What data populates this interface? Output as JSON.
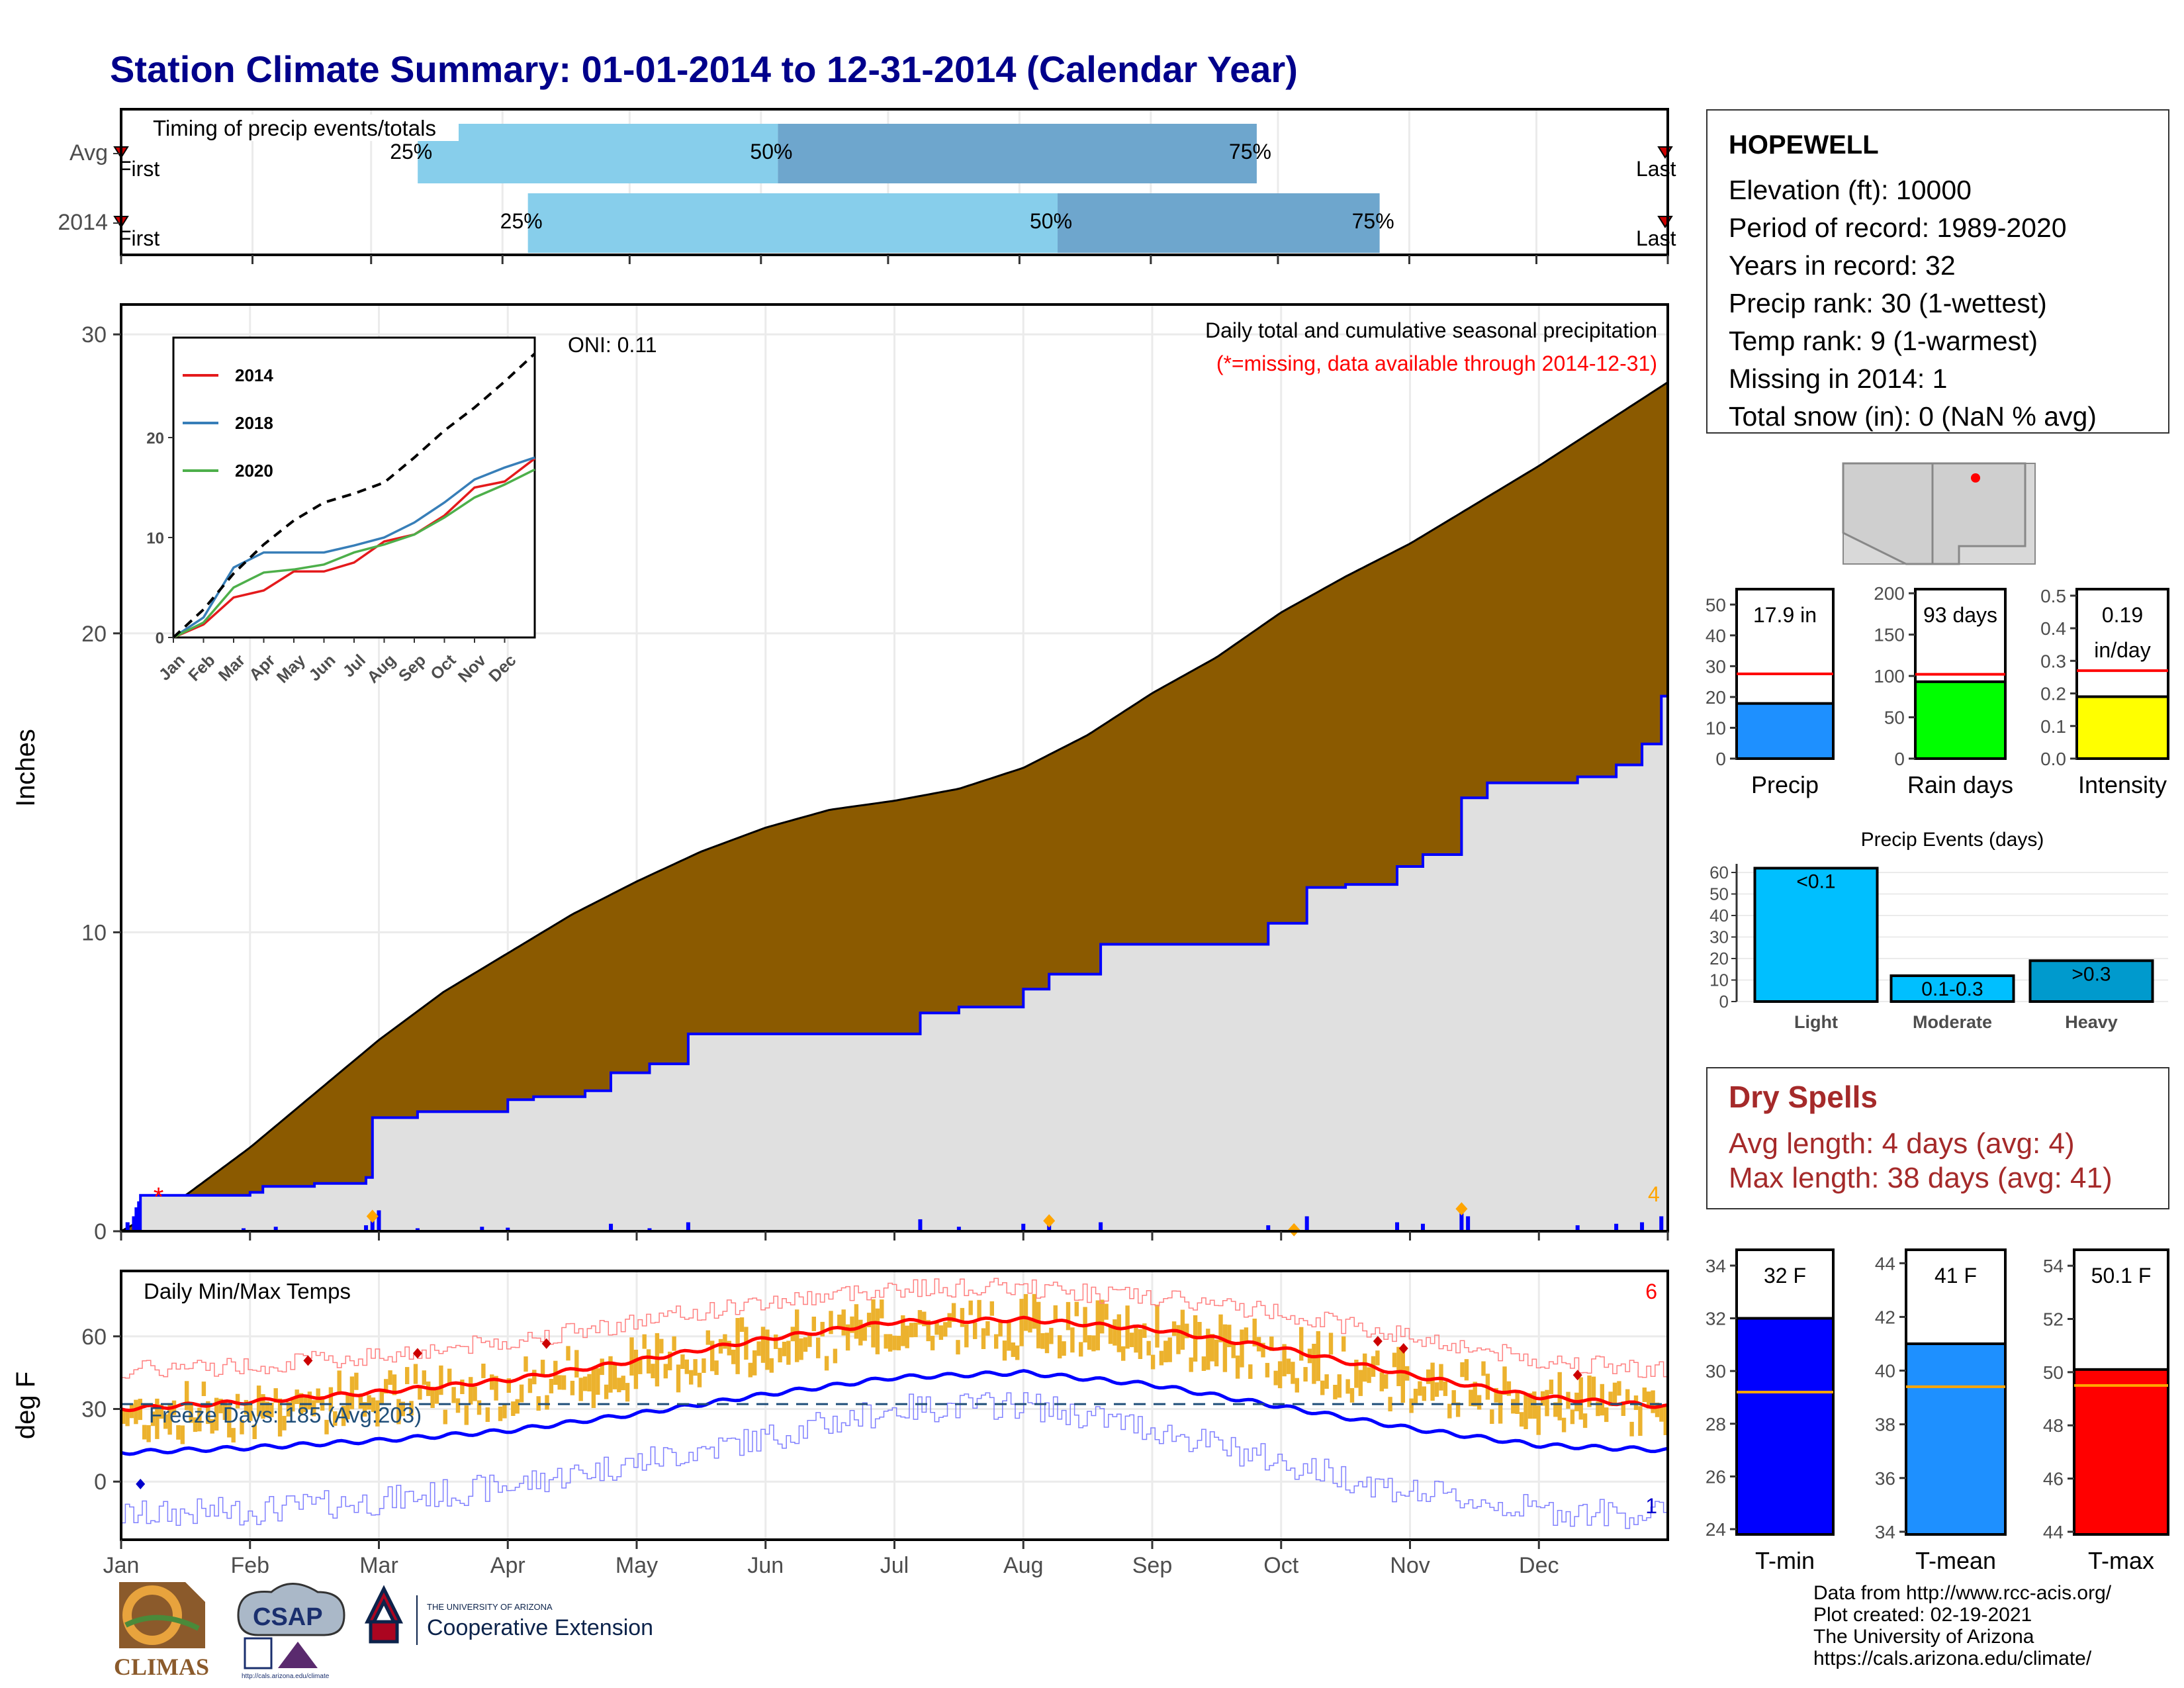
{
  "title": "Station Climate Summary: 01-01-2014 to 12-31-2014 (Calendar Year)",
  "station": {
    "name": "HOPEWELL",
    "lines": [
      "Elevation (ft): 10000",
      "Period of record: 1989-2020",
      "Years in record: 32",
      "Precip rank: 30 (1-wettest)",
      "Temp rank: 9 (1-warmest)",
      "Missing in 2014: 1",
      "Total snow (in): 0 (NaN % avg)"
    ]
  },
  "dry_spells": {
    "heading": "Dry Spells",
    "avg": "Avg length: 4 days (avg: 4)",
    "max": "Max length: 38 days (avg: 41)"
  },
  "credits": [
    "Data from http://www.rcc-acis.org/",
    "Plot created: 02-19-2021",
    "The University of Arizona",
    "https://cals.arizona.edu/climate/"
  ],
  "logos": {
    "climas": "CLIMAS",
    "csap": "CSAP",
    "csap_url": "http://cals.arizona.edu/climate",
    "ua_small": "THE UNIVERSITY OF ARIZONA",
    "ua_big": "Cooperative Extension"
  },
  "colors": {
    "title": "#00008b",
    "cumulative_avg_fill": "#8b5a00",
    "cumulative_2014_fill": "#e0e0e0",
    "cumulative_line": "#0000ff",
    "light_blue": "#87ceeb",
    "steel_blue": "#6ea6cd",
    "tmax": "#ff0000",
    "tmin": "#0000ff",
    "temp_bar": "#ecb22e",
    "dry_spell": "#a52a2a"
  },
  "chart_data": [
    {
      "id": "timing",
      "type": "bar",
      "title": "Timing of precip events/totals",
      "categories": [
        "Avg",
        "2014"
      ],
      "first_label": "First",
      "last_label": "Last",
      "quantiles": [
        {
          "row": "Avg",
          "q25": "Mar 12",
          "q50": "Jun 5",
          "q75": "Sep 26",
          "labels": [
            "25%",
            "50%",
            "75%"
          ]
        },
        {
          "row": "2014",
          "q25": "Apr 7",
          "q50": "Aug 10",
          "q75": "Oct 25",
          "labels": [
            "25%",
            "50%",
            "75%"
          ]
        }
      ]
    },
    {
      "id": "precip",
      "type": "area",
      "ylabel": "Inches",
      "ylim": [
        0,
        31
      ],
      "yticks": [
        0,
        10,
        20,
        30
      ],
      "annotation_top": "Daily total and cumulative seasonal precipitation",
      "annotation_missing": "(*=missing, data available through 2014-12-31)",
      "oni": "ONI: 0.11",
      "corner_count": "4",
      "series": [
        {
          "name": "Average cumulative",
          "points": [
            [
              0,
              0
            ],
            [
              0.5,
              1.2
            ],
            [
              1,
              2.8
            ],
            [
              1.5,
              4.6
            ],
            [
              2,
              6.4
            ],
            [
              2.5,
              8.0
            ],
            [
              3,
              9.3
            ],
            [
              3.5,
              10.6
            ],
            [
              4,
              11.7
            ],
            [
              4.5,
              12.7
            ],
            [
              5,
              13.5
            ],
            [
              5.5,
              14.1
            ],
            [
              6,
              14.4
            ],
            [
              6.5,
              14.8
            ],
            [
              7,
              15.5
            ],
            [
              7.5,
              16.6
            ],
            [
              8,
              18.0
            ],
            [
              8.5,
              19.2
            ],
            [
              9,
              20.7
            ],
            [
              9.5,
              21.9
            ],
            [
              10,
              23.0
            ],
            [
              10.5,
              24.3
            ],
            [
              11,
              25.6
            ],
            [
              11.5,
              27.0
            ],
            [
              12,
              28.4
            ]
          ]
        },
        {
          "name": "2014 cumulative",
          "points": [
            [
              0,
              0
            ],
            [
              0.15,
              1.2
            ],
            [
              0.9,
              1.2
            ],
            [
              1.0,
              1.3
            ],
            [
              1.1,
              1.5
            ],
            [
              1.5,
              1.6
            ],
            [
              1.9,
              1.8
            ],
            [
              1.95,
              3.8
            ],
            [
              2.3,
              4.0
            ],
            [
              2.8,
              4.0
            ],
            [
              3.0,
              4.4
            ],
            [
              3.2,
              4.5
            ],
            [
              3.6,
              4.7
            ],
            [
              3.8,
              5.3
            ],
            [
              4.1,
              5.6
            ],
            [
              4.4,
              6.6
            ],
            [
              5.0,
              6.6
            ],
            [
              6.0,
              6.6
            ],
            [
              6.2,
              7.3
            ],
            [
              6.5,
              7.5
            ],
            [
              7.0,
              8.1
            ],
            [
              7.2,
              8.6
            ],
            [
              7.6,
              9.6
            ],
            [
              8.0,
              9.6
            ],
            [
              8.6,
              9.6
            ],
            [
              8.9,
              10.3
            ],
            [
              9.2,
              11.5
            ],
            [
              9.5,
              11.6
            ],
            [
              9.9,
              12.2
            ],
            [
              10.1,
              12.6
            ],
            [
              10.4,
              14.5
            ],
            [
              10.6,
              15.0
            ],
            [
              11.0,
              15.0
            ],
            [
              11.3,
              15.2
            ],
            [
              11.6,
              15.6
            ],
            [
              11.8,
              16.3
            ],
            [
              11.95,
              17.9
            ],
            [
              12,
              17.9
            ]
          ]
        }
      ],
      "daily_precip_spikes": [
        [
          0.05,
          0.3
        ],
        [
          0.1,
          0.5
        ],
        [
          0.12,
          0.8
        ],
        [
          0.14,
          1.0
        ],
        [
          0.95,
          0.1
        ],
        [
          1.2,
          0.15
        ],
        [
          1.9,
          0.2
        ],
        [
          1.95,
          0.35
        ],
        [
          2.0,
          0.7
        ],
        [
          2.3,
          0.1
        ],
        [
          2.8,
          0.15
        ],
        [
          3.0,
          0.12
        ],
        [
          3.8,
          0.25
        ],
        [
          4.1,
          0.1
        ],
        [
          4.4,
          0.3
        ],
        [
          6.2,
          0.4
        ],
        [
          6.5,
          0.15
        ],
        [
          7.0,
          0.25
        ],
        [
          7.2,
          0.2
        ],
        [
          7.6,
          0.3
        ],
        [
          8.9,
          0.2
        ],
        [
          9.2,
          0.5
        ],
        [
          9.9,
          0.3
        ],
        [
          10.1,
          0.25
        ],
        [
          10.4,
          0.65
        ],
        [
          10.45,
          0.5
        ],
        [
          11.3,
          0.2
        ],
        [
          11.6,
          0.25
        ],
        [
          11.8,
          0.3
        ],
        [
          11.95,
          0.5
        ]
      ]
    },
    {
      "id": "cumulative_inset",
      "type": "line",
      "categories": [
        "Jan",
        "Feb",
        "Mar",
        "Apr",
        "May",
        "Jun",
        "Jul",
        "Aug",
        "Sep",
        "Oct",
        "Nov",
        "Dec"
      ],
      "ylim": [
        0,
        30
      ],
      "yticks": [
        0,
        10,
        20
      ],
      "series": [
        {
          "name": "2014",
          "points": [
            [
              0,
              0
            ],
            [
              1,
              1.3
            ],
            [
              2,
              4.0
            ],
            [
              3,
              4.7
            ],
            [
              4,
              6.6
            ],
            [
              5,
              6.6
            ],
            [
              6,
              7.5
            ],
            [
              7,
              9.6
            ],
            [
              8,
              10.3
            ],
            [
              9,
              12.2
            ],
            [
              10,
              15.0
            ],
            [
              11,
              15.6
            ],
            [
              12,
              17.9
            ]
          ]
        },
        {
          "name": "2018",
          "points": [
            [
              0,
              0
            ],
            [
              1,
              2.0
            ],
            [
              2,
              7.0
            ],
            [
              3,
              8.5
            ],
            [
              4,
              8.5
            ],
            [
              5,
              8.5
            ],
            [
              6,
              9.2
            ],
            [
              7,
              10.0
            ],
            [
              8,
              11.5
            ],
            [
              9,
              13.5
            ],
            [
              10,
              15.8
            ],
            [
              11,
              17.0
            ],
            [
              12,
              18.0
            ]
          ]
        },
        {
          "name": "2020",
          "points": [
            [
              0,
              0
            ],
            [
              1,
              1.5
            ],
            [
              2,
              5.0
            ],
            [
              3,
              6.5
            ],
            [
              4,
              6.8
            ],
            [
              5,
              7.3
            ],
            [
              6,
              8.5
            ],
            [
              7,
              9.3
            ],
            [
              8,
              10.3
            ],
            [
              9,
              12.0
            ],
            [
              10,
              14.0
            ],
            [
              11,
              15.3
            ],
            [
              12,
              16.8
            ]
          ]
        },
        {
          "name": "Average",
          "points": [
            [
              0,
              0
            ],
            [
              1,
              2.8
            ],
            [
              2,
              6.4
            ],
            [
              3,
              9.3
            ],
            [
              4,
              11.7
            ],
            [
              5,
              13.5
            ],
            [
              6,
              14.4
            ],
            [
              7,
              15.5
            ],
            [
              8,
              18.0
            ],
            [
              9,
              20.7
            ],
            [
              10,
              23.0
            ],
            [
              11,
              25.6
            ],
            [
              12,
              28.4
            ]
          ]
        }
      ]
    },
    {
      "id": "temps",
      "type": "line",
      "title": "Daily Min/Max Temps",
      "ylabel": "deg F",
      "ylim": [
        -24,
        87
      ],
      "yticks": [
        0,
        30,
        60
      ],
      "freeze_days": "Freeze Days: 185 (Avg:203)",
      "freeze_line": 32,
      "corner_max_count": "6",
      "corner_min_count": "1",
      "categories": [
        "Jan",
        "Feb",
        "Mar",
        "Apr",
        "May",
        "Jun",
        "Jul",
        "Aug",
        "Sep",
        "Oct",
        "Nov",
        "Dec"
      ],
      "series": [
        {
          "name": "Avg Tmax",
          "points": [
            [
              0,
              30
            ],
            [
              1,
              33
            ],
            [
              2,
              37
            ],
            [
              3,
              42
            ],
            [
              4,
              50
            ],
            [
              5,
              59
            ],
            [
              6,
              66
            ],
            [
              7,
              67
            ],
            [
              8,
              63
            ],
            [
              9,
              55
            ],
            [
              10,
              44
            ],
            [
              11,
              35
            ],
            [
              12,
              31
            ]
          ]
        },
        {
          "name": "Avg Tmin",
          "points": [
            [
              0,
              12
            ],
            [
              1,
              14
            ],
            [
              2,
              17
            ],
            [
              3,
              21
            ],
            [
              4,
              28
            ],
            [
              5,
              36
            ],
            [
              6,
              43
            ],
            [
              7,
              45
            ],
            [
              8,
              40
            ],
            [
              9,
              31
            ],
            [
              10,
              22
            ],
            [
              11,
              15
            ],
            [
              12,
              13
            ]
          ]
        },
        {
          "name": "Record Tmax",
          "points": [
            [
              0,
              46
            ],
            [
              1,
              48
            ],
            [
              2,
              52
            ],
            [
              3,
              58
            ],
            [
              4,
              66
            ],
            [
              5,
              74
            ],
            [
              6,
              80
            ],
            [
              7,
              80
            ],
            [
              8,
              76
            ],
            [
              9,
              70
            ],
            [
              10,
              60
            ],
            [
              11,
              50
            ],
            [
              12,
              46
            ]
          ]
        },
        {
          "name": "Record Tmin",
          "points": [
            [
              0,
              -14
            ],
            [
              1,
              -12
            ],
            [
              2,
              -8
            ],
            [
              3,
              -2
            ],
            [
              4,
              8
            ],
            [
              5,
              18
            ],
            [
              6,
              30
            ],
            [
              7,
              32
            ],
            [
              8,
              22
            ],
            [
              9,
              8
            ],
            [
              10,
              -4
            ],
            [
              11,
              -12
            ],
            [
              12,
              -14
            ]
          ]
        }
      ]
    },
    {
      "id": "totals_precip",
      "type": "bar",
      "categories": [
        "Precip"
      ],
      "values": [
        17.9
      ],
      "average": 27.5,
      "label": "17.9 in",
      "ylim": [
        0,
        55
      ],
      "yticks": [
        0,
        10,
        20,
        30,
        40,
        50
      ]
    },
    {
      "id": "totals_raindays",
      "type": "bar",
      "categories": [
        "Rain days"
      ],
      "values": [
        93
      ],
      "average": 102,
      "label": "93 days",
      "ylim": [
        0,
        205
      ],
      "yticks": [
        0,
        50,
        100,
        150,
        200
      ]
    },
    {
      "id": "totals_intensity",
      "type": "bar",
      "categories": [
        "Intensity"
      ],
      "values": [
        0.19
      ],
      "average": 0.27,
      "label": "0.19",
      "label2": "in/day",
      "ylim": [
        0,
        0.52
      ],
      "yticks": [
        0.0,
        0.1,
        0.2,
        0.3,
        0.4,
        0.5
      ]
    },
    {
      "id": "precip_events",
      "type": "bar",
      "title": "Precip Events (days)",
      "categories": [
        "Light",
        "Moderate",
        "Heavy"
      ],
      "values": [
        62,
        12,
        19
      ],
      "bar_labels": [
        "<0.1",
        "0.1-0.3",
        ">0.3"
      ],
      "ylim": [
        0,
        64
      ],
      "yticks": [
        0,
        10,
        20,
        30,
        40,
        50,
        60
      ]
    },
    {
      "id": "tmin_bar",
      "type": "bar",
      "categories": [
        "T-min"
      ],
      "values": [
        32
      ],
      "average": 29.2,
      "label": "32 F",
      "ylim": [
        23.8,
        34.6
      ],
      "yticks": [
        24,
        26,
        28,
        30,
        32,
        34
      ]
    },
    {
      "id": "tmean_bar",
      "type": "bar",
      "categories": [
        "T-mean"
      ],
      "values": [
        41
      ],
      "average": 39.4,
      "label": "41 F",
      "ylim": [
        33.9,
        44.5
      ],
      "yticks": [
        34,
        36,
        38,
        40,
        42,
        44
      ]
    },
    {
      "id": "tmax_bar",
      "type": "bar",
      "categories": [
        "T-max"
      ],
      "values": [
        50.1
      ],
      "average": 49.5,
      "label": "50.1 F",
      "ylim": [
        43.9,
        54.6
      ],
      "yticks": [
        44,
        46,
        48,
        50,
        52,
        54
      ]
    }
  ]
}
